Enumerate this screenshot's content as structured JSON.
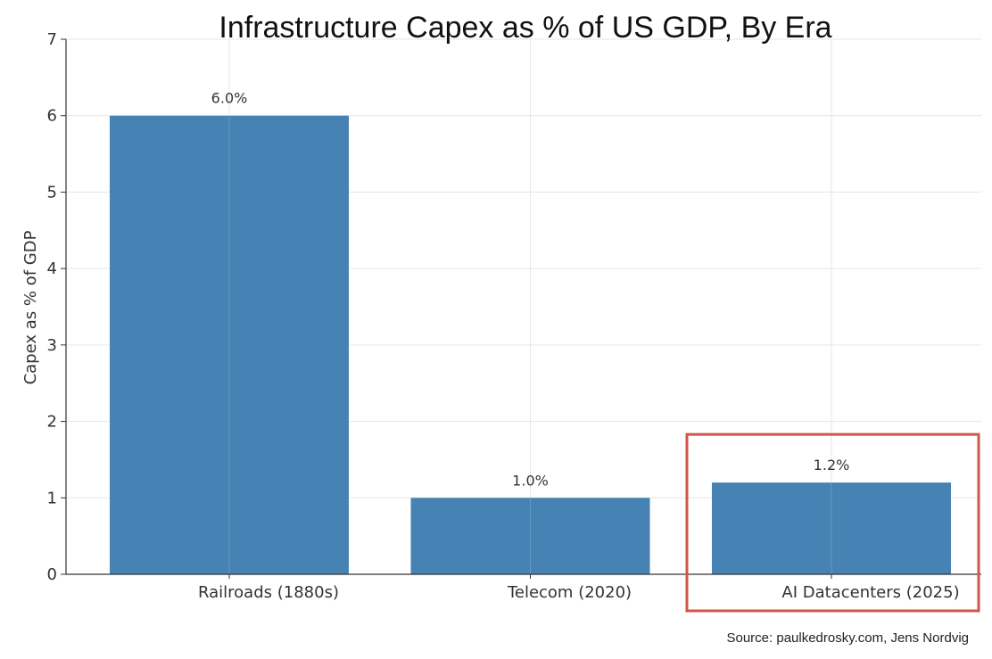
{
  "chart_data": {
    "type": "bar",
    "title": "Infrastructure Capex as % of US GDP, By Era",
    "xlabel": "",
    "ylabel": "Capex as % of GDP",
    "categories": [
      "Railroads (1880s)",
      "Telecom (2020)",
      "AI Datacenters (2025)"
    ],
    "values": [
      6.0,
      1.0,
      1.2
    ],
    "data_labels": [
      "6.0%",
      "1.0%",
      "1.2%"
    ],
    "ylim": [
      0,
      7
    ],
    "yticks": [
      0,
      1,
      2,
      3,
      4,
      5,
      6,
      7
    ],
    "grid": true,
    "highlighted_category": "AI Datacenters (2025)",
    "source": "Source: paulkedrosky.com, Jens Nordvig"
  },
  "colors": {
    "bar": "#4682b4",
    "highlight_box": "#d0564c",
    "grid": "#e6e6e6",
    "axis": "#333333",
    "text": "#333333"
  }
}
